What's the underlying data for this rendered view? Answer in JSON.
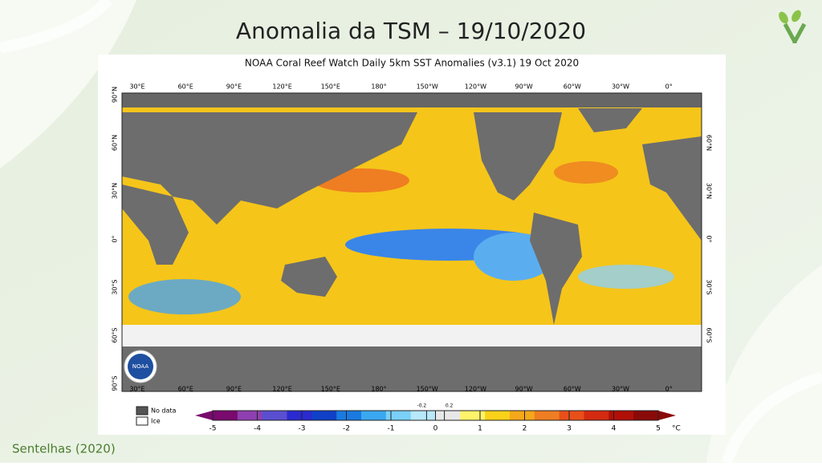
{
  "slide": {
    "title": "Anomalia da TSM – 19/10/2020",
    "source": "Sentelhas (2020)"
  },
  "map": {
    "title": "NOAA Coral Reef Watch Daily 5km SST Anomalies  (v3.1)   19 Oct 2020",
    "lon_labels": [
      "30°E",
      "60°E",
      "90°E",
      "120°E",
      "150°E",
      "180°",
      "150°W",
      "120°W",
      "90°W",
      "60°W",
      "30°W",
      "0°"
    ],
    "lat_labels_left": [
      "90°N",
      "60°N",
      "30°N",
      "0°",
      "30°S",
      "60°S",
      "90°S"
    ],
    "lat_labels_right": [
      "60°N",
      "30°N",
      "0°",
      "30°S",
      "60°S"
    ],
    "logo": "NOAA",
    "legend": [
      "No data",
      "Ice"
    ],
    "colorbar": {
      "ticks": [
        -5,
        -4,
        -3,
        -2,
        -1,
        0,
        1,
        2,
        3,
        4,
        5
      ],
      "inner_ticks": [
        -0.2,
        0.2
      ],
      "unit": "°C"
    }
  }
}
